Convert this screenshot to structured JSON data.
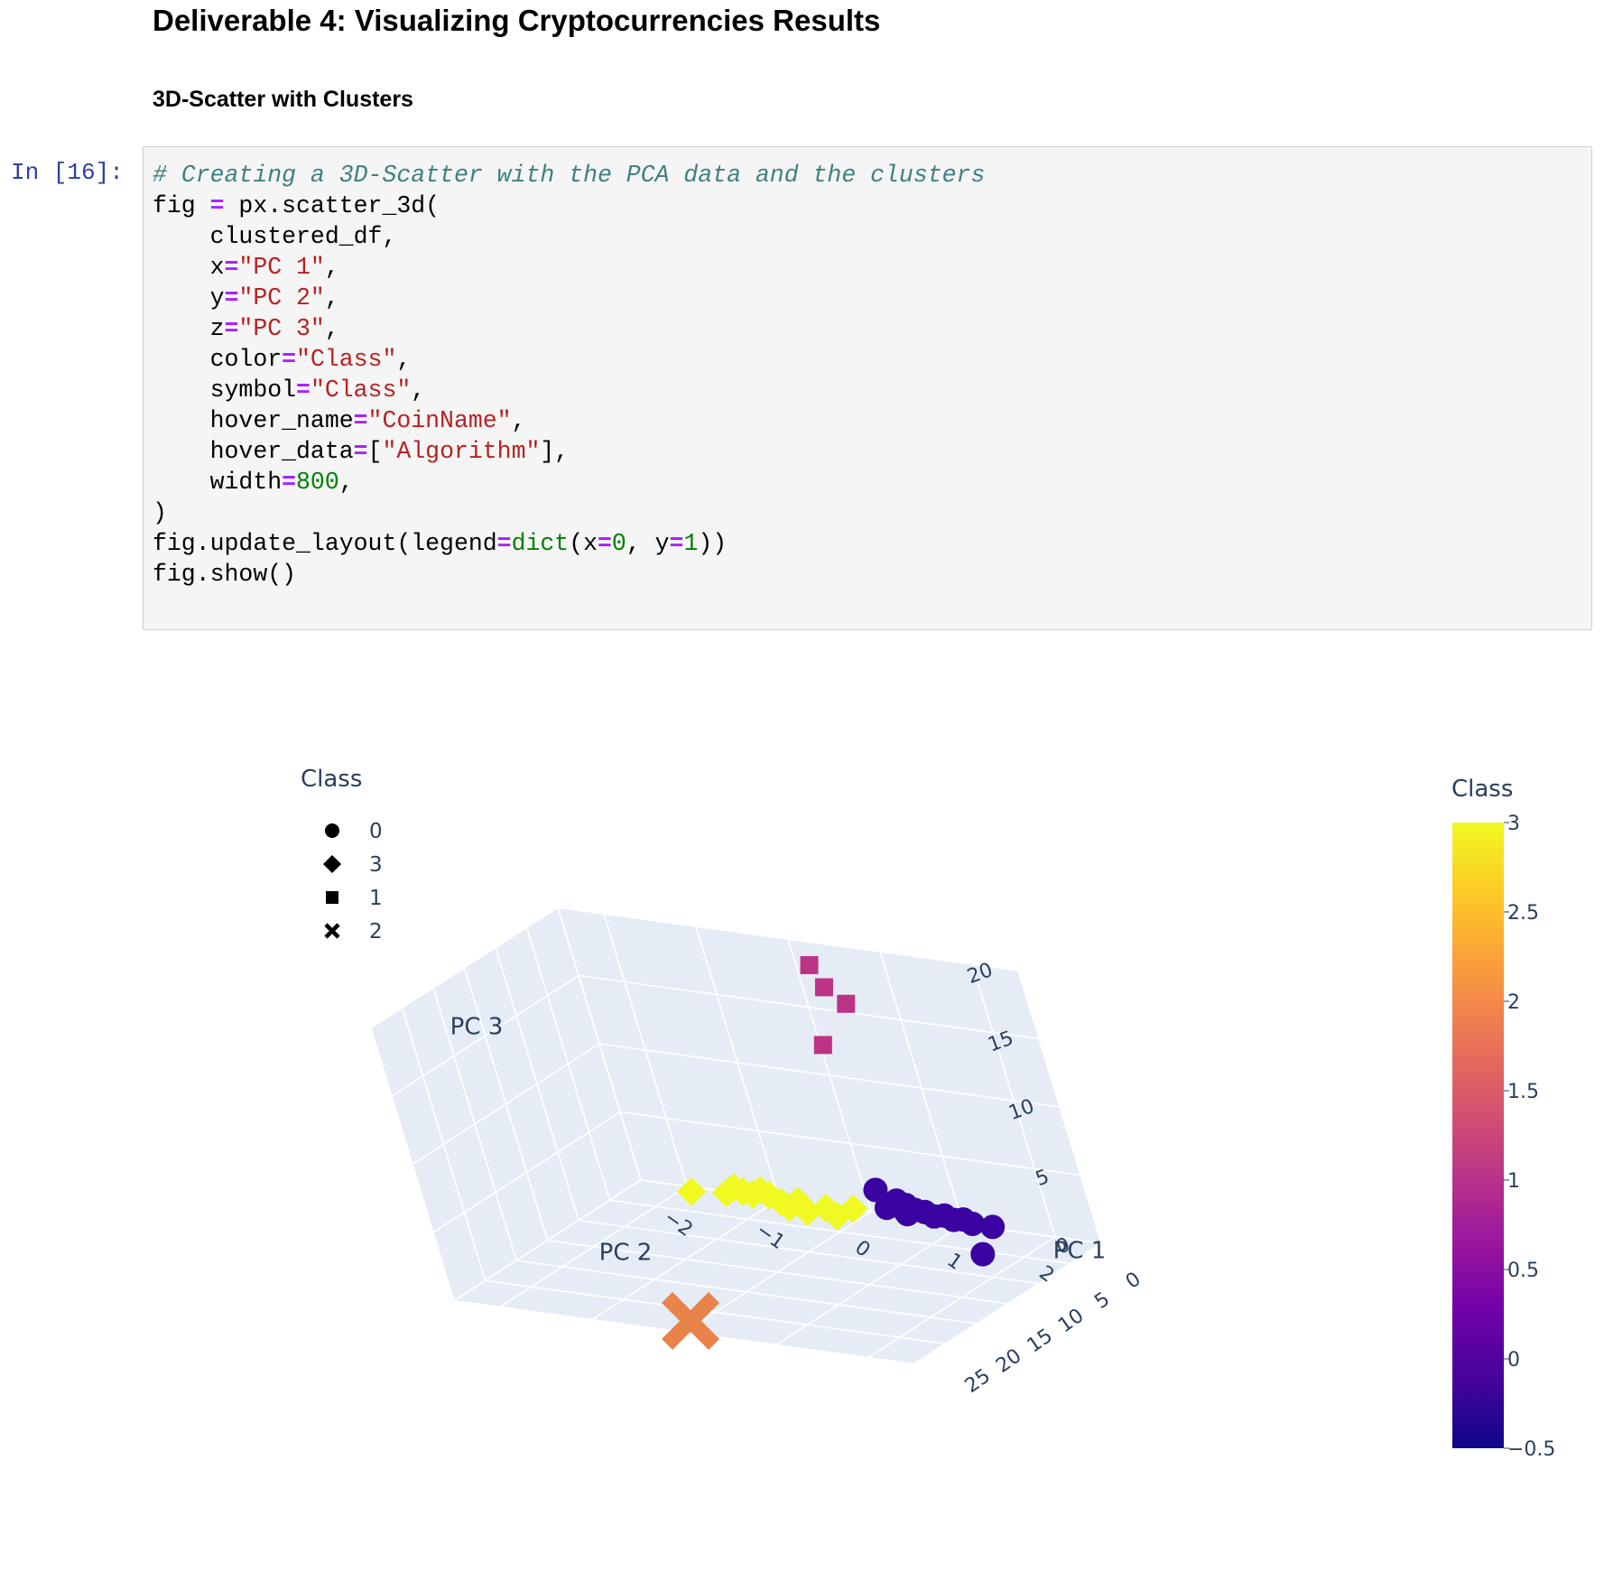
{
  "heading": "Deliverable 4: Visualizing Cryptocurrencies Results",
  "subheading": "3D-Scatter with Clusters",
  "cell": {
    "prompt": "In [16]:",
    "lines": [
      [
        {
          "t": "c",
          "v": "# Creating a 3D-Scatter with the PCA data and the clusters"
        }
      ],
      [
        {
          "t": "",
          "v": "fig "
        },
        {
          "t": "o",
          "v": "="
        },
        {
          "t": "",
          "v": " px.scatter_3d("
        }
      ],
      [
        {
          "t": "",
          "v": "    clustered_df,"
        }
      ],
      [
        {
          "t": "",
          "v": "    x"
        },
        {
          "t": "o",
          "v": "="
        },
        {
          "t": "s",
          "v": "\"PC 1\""
        },
        {
          "t": "",
          "v": ","
        }
      ],
      [
        {
          "t": "",
          "v": "    y"
        },
        {
          "t": "o",
          "v": "="
        },
        {
          "t": "s",
          "v": "\"PC 2\""
        },
        {
          "t": "",
          "v": ","
        }
      ],
      [
        {
          "t": "",
          "v": "    z"
        },
        {
          "t": "o",
          "v": "="
        },
        {
          "t": "s",
          "v": "\"PC 3\""
        },
        {
          "t": "",
          "v": ","
        }
      ],
      [
        {
          "t": "",
          "v": "    color"
        },
        {
          "t": "o",
          "v": "="
        },
        {
          "t": "s",
          "v": "\"Class\""
        },
        {
          "t": "",
          "v": ","
        }
      ],
      [
        {
          "t": "",
          "v": "    symbol"
        },
        {
          "t": "o",
          "v": "="
        },
        {
          "t": "s",
          "v": "\"Class\""
        },
        {
          "t": "",
          "v": ","
        }
      ],
      [
        {
          "t": "",
          "v": "    hover_name"
        },
        {
          "t": "o",
          "v": "="
        },
        {
          "t": "s",
          "v": "\"CoinName\""
        },
        {
          "t": "",
          "v": ","
        }
      ],
      [
        {
          "t": "",
          "v": "    hover_data"
        },
        {
          "t": "o",
          "v": "="
        },
        {
          "t": "",
          "v": "["
        },
        {
          "t": "s",
          "v": "\"Algorithm\""
        },
        {
          "t": "",
          "v": "],"
        }
      ],
      [
        {
          "t": "",
          "v": "    width"
        },
        {
          "t": "o",
          "v": "="
        },
        {
          "t": "n",
          "v": "800"
        },
        {
          "t": "",
          "v": ","
        }
      ],
      [
        {
          "t": "",
          "v": ")"
        }
      ],
      [
        {
          "t": "",
          "v": "fig.update_layout(legend"
        },
        {
          "t": "o",
          "v": "="
        },
        {
          "t": "b",
          "v": "dict"
        },
        {
          "t": "",
          "v": "(x"
        },
        {
          "t": "o",
          "v": "="
        },
        {
          "t": "n",
          "v": "0"
        },
        {
          "t": "",
          "v": ", y"
        },
        {
          "t": "o",
          "v": "="
        },
        {
          "t": "n",
          "v": "1"
        },
        {
          "t": "",
          "v": "))"
        }
      ],
      [
        {
          "t": "",
          "v": "fig.show()"
        }
      ]
    ]
  },
  "legend": {
    "title": "Class",
    "items": [
      {
        "label": "0",
        "symbol": "circle"
      },
      {
        "label": "3",
        "symbol": "diamond"
      },
      {
        "label": "1",
        "symbol": "square"
      },
      {
        "label": "2",
        "symbol": "x"
      }
    ]
  },
  "colorbar": {
    "title": "Class",
    "ticks": [
      "3",
      "2.5",
      "2",
      "1.5",
      "1",
      "0.5",
      "0",
      "−0.5"
    ],
    "range": [
      -0.5,
      3
    ],
    "colors": [
      "#0d0887",
      "#46039f",
      "#7201a8",
      "#9c179e",
      "#bd3786",
      "#d8576b",
      "#ed7953",
      "#fb9f3a",
      "#fdca26",
      "#f0f921"
    ]
  },
  "chart_data": {
    "type": "scatter",
    "title": "",
    "xlabel": "PC 1",
    "ylabel": "PC 2",
    "zlabel": "PC 3",
    "x_ticks": [
      "0",
      "5",
      "10",
      "15",
      "20",
      "25"
    ],
    "y_ticks": [
      "−2",
      "−1",
      "0",
      "1",
      "2"
    ],
    "z_ticks": [
      "0",
      "5",
      "10",
      "15",
      "20"
    ],
    "xlim": [
      0,
      30
    ],
    "ylim": [
      -2.5,
      2.5
    ],
    "zlim": [
      0,
      20
    ],
    "series": [
      {
        "name": "0",
        "symbol": "circle",
        "color": "#3a03a1",
        "points": [
          [
            -0.3,
            1.3,
            0.0
          ],
          [
            -0.2,
            1.0,
            0.3
          ],
          [
            -0.2,
            0.8,
            0.4
          ],
          [
            -0.1,
            0.9,
            0.2
          ],
          [
            -0.1,
            0.6,
            0.5
          ],
          [
            0.0,
            0.7,
            0.3
          ],
          [
            0.0,
            0.5,
            0.6
          ],
          [
            0.1,
            0.4,
            0.4
          ],
          [
            -0.2,
            0.4,
            0.8
          ],
          [
            -0.3,
            0.3,
            1.0
          ],
          [
            -0.1,
            1.1,
            0.1
          ],
          [
            0.1,
            0.2,
            0.5
          ],
          [
            -0.3,
            0.1,
            1.6
          ],
          [
            3.5,
            0.7,
            1.5
          ],
          [
            4.5,
            1.5,
            -0.4
          ]
        ]
      },
      {
        "name": "3",
        "symbol": "diamond",
        "color": "#f0f921",
        "points": [
          [
            -0.4,
            -2.0,
            -0.5
          ],
          [
            -0.3,
            -1.6,
            -0.2
          ],
          [
            -0.2,
            -1.3,
            0.0
          ],
          [
            -0.2,
            -1.4,
            0.1
          ],
          [
            -0.2,
            -1.0,
            -0.3
          ],
          [
            -0.1,
            -0.8,
            0.0
          ],
          [
            0.0,
            -0.5,
            -0.2
          ],
          [
            -0.1,
            -0.2,
            0.0
          ],
          [
            0.0,
            -1.1,
            0.2
          ],
          [
            0.1,
            -0.9,
            -0.5
          ],
          [
            0.2,
            -0.7,
            -0.6
          ],
          [
            0.0,
            -0.4,
            -0.7
          ],
          [
            -0.3,
            -1.5,
            0.3
          ],
          [
            -0.2,
            -1.2,
            0.4
          ]
        ]
      },
      {
        "name": "1",
        "symbol": "square",
        "color": "#bc3486",
        "points": [
          [
            -0.6,
            0.1,
            18.0
          ],
          [
            -0.5,
            0.2,
            16.5
          ],
          [
            -0.4,
            0.4,
            15.5
          ],
          [
            2.0,
            0.2,
            13.0
          ]
        ]
      },
      {
        "name": "2",
        "symbol": "x",
        "color": "#e8834a",
        "points": [
          [
            27.5,
            -0.1,
            0.0
          ]
        ]
      }
    ]
  }
}
